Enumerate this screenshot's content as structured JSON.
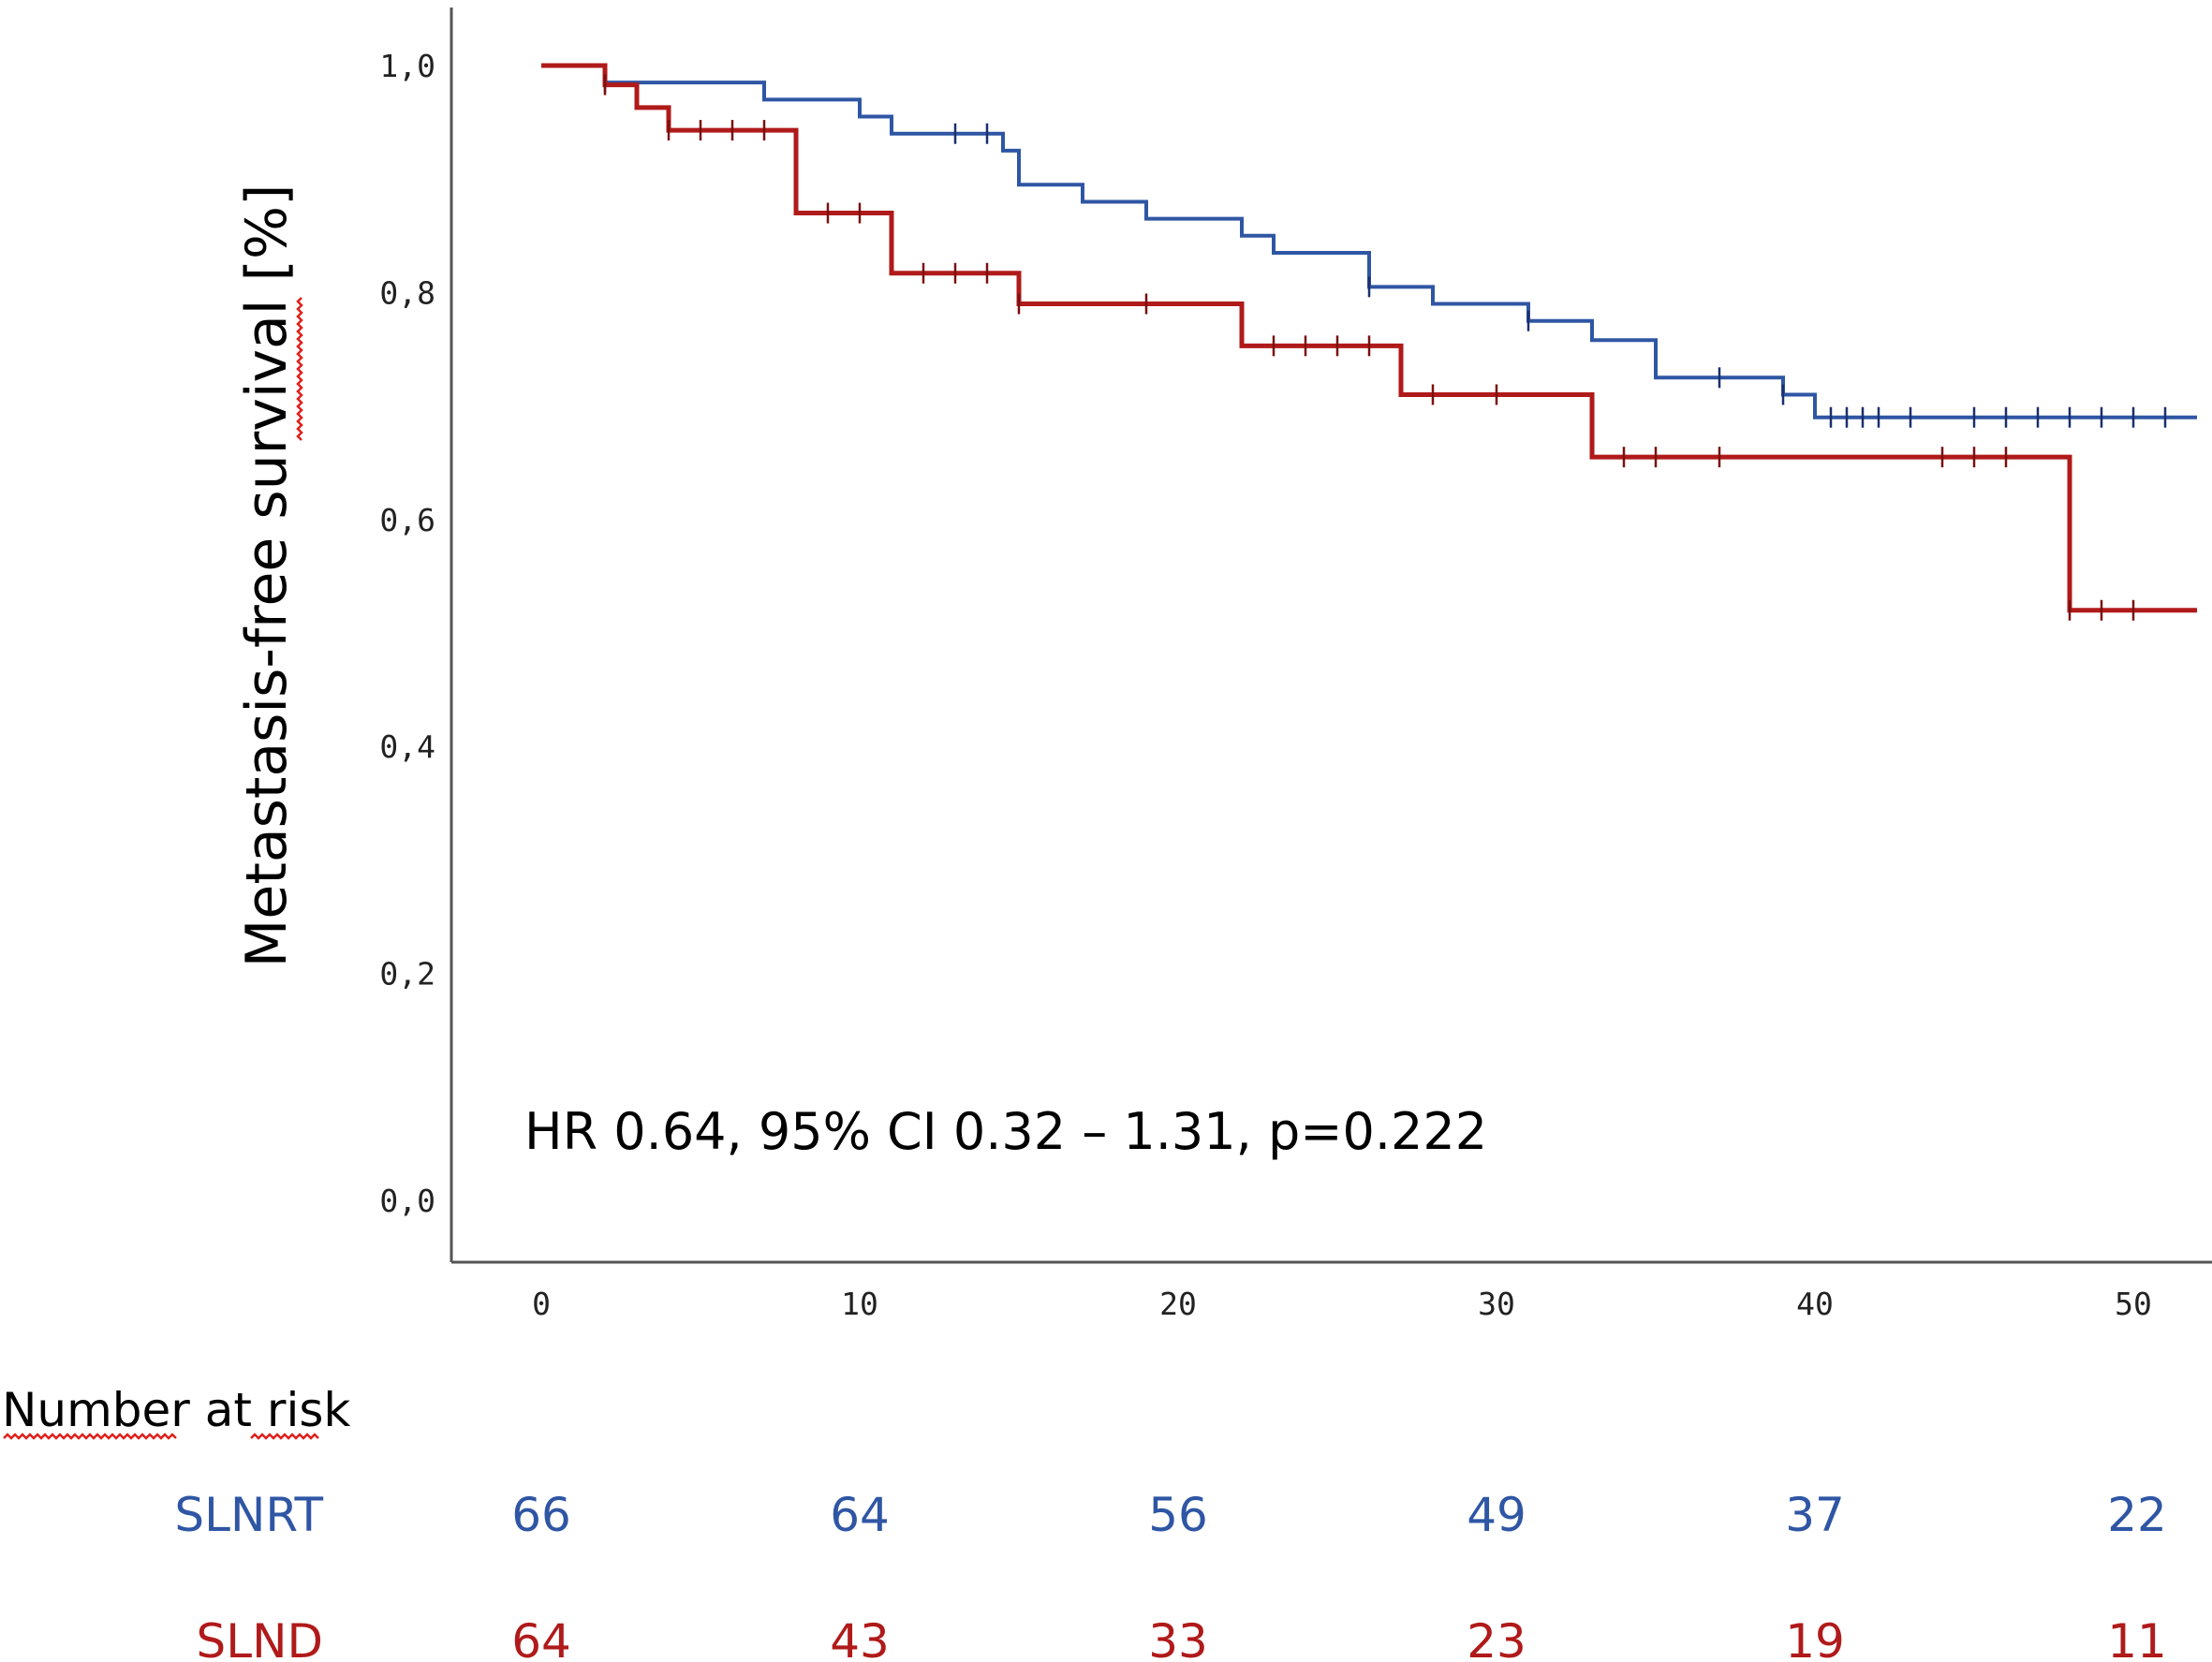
{
  "chart_data": {
    "type": "line",
    "subtype": "kaplan-meier",
    "title": "",
    "xlabel": "",
    "ylabel": "Metastasis-free survival [%]",
    "xlim": [
      -2.8,
      52
    ],
    "ylim": [
      0,
      1.0
    ],
    "x_ticks": [
      0,
      10,
      20,
      30,
      40,
      50
    ],
    "y_ticks": [
      0,
      0.2,
      0.4,
      0.6,
      0.8,
      1.0
    ],
    "x_tick_labels": [
      "0",
      "10",
      "20",
      "30",
      "40",
      "50"
    ],
    "y_tick_labels": [
      "0,0",
      "0,2",
      "0,4",
      "0,6",
      "0,8",
      "1,0"
    ],
    "annotation": "HR 0.64, 95% CI 0.32 – 1.31, p=0.222",
    "series": [
      {
        "name": "SLNRT",
        "color": "#2f56a4",
        "steps": [
          [
            0,
            1.0
          ],
          [
            2,
            0.985
          ],
          [
            7,
            0.97
          ],
          [
            10,
            0.955
          ],
          [
            11,
            0.94
          ],
          [
            14.5,
            0.925
          ],
          [
            15,
            0.895
          ],
          [
            17,
            0.88
          ],
          [
            19,
            0.865
          ],
          [
            22,
            0.85
          ],
          [
            23,
            0.835
          ],
          [
            26,
            0.805
          ],
          [
            28,
            0.79
          ],
          [
            31,
            0.775
          ],
          [
            33,
            0.758
          ],
          [
            35,
            0.725
          ],
          [
            39,
            0.71
          ],
          [
            40,
            0.69
          ],
          [
            52,
            0.69
          ]
        ],
        "censored": [
          2,
          13,
          14,
          26,
          31,
          37,
          39,
          40.5,
          41,
          41.5,
          42,
          43,
          45,
          46,
          47,
          48,
          49,
          50,
          51
        ]
      },
      {
        "name": "SLND",
        "color": "#b01a1a",
        "steps": [
          [
            0,
            1.0
          ],
          [
            2,
            0.983
          ],
          [
            3,
            0.963
          ],
          [
            4,
            0.943
          ],
          [
            8,
            0.87
          ],
          [
            11,
            0.817
          ],
          [
            15,
            0.79
          ],
          [
            22,
            0.753
          ],
          [
            27,
            0.71
          ],
          [
            33,
            0.655
          ],
          [
            48,
            0.52
          ],
          [
            52,
            0.52
          ]
        ],
        "censored": [
          2,
          4,
          5,
          6,
          7,
          9,
          10,
          12,
          13,
          14,
          15,
          19,
          23,
          24,
          25,
          26,
          28,
          30,
          34,
          35,
          37,
          44,
          45,
          46,
          48,
          49,
          50
        ]
      }
    ]
  },
  "risk_table": {
    "title": "Number at risk",
    "times": [
      0,
      10,
      20,
      30,
      40,
      50
    ],
    "rows": [
      {
        "label": "SLNRT",
        "color": "#2f56a4",
        "values": [
          "66",
          "64",
          "56",
          "49",
          "37",
          "22"
        ]
      },
      {
        "label": "SLND",
        "color": "#b01a1a",
        "values": [
          "64",
          "43",
          "33",
          "23",
          "19",
          "11"
        ]
      }
    ]
  }
}
